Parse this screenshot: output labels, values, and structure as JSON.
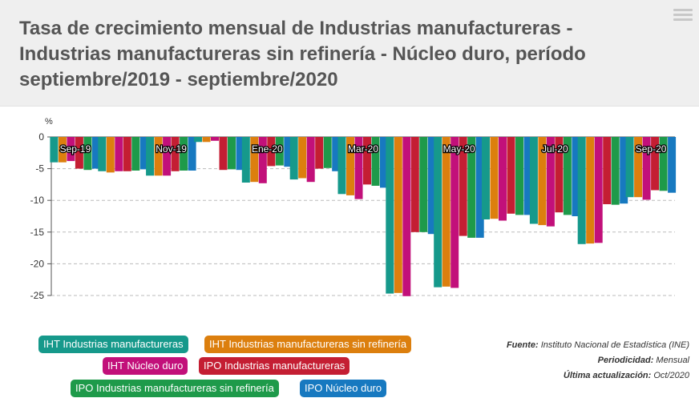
{
  "title": "Tasa de crecimiento mensual de Industrias manufactureras - Industrias manufactureras sin refinería - Núcleo duro, período septiembre/2019 - septiembre/2020",
  "menu_icon": "hamburger-menu-icon",
  "chart_data": {
    "type": "bar",
    "ylabel": "%",
    "ylim": [
      -25,
      0
    ],
    "yticks": [
      0,
      -5,
      -10,
      -15,
      -20,
      -25
    ],
    "months": [
      "Sep-19",
      "Oct-19",
      "Nov-19",
      "Dic-19",
      "Ene-20",
      "Feb-20",
      "Mar-20",
      "Abr-20",
      "May-20",
      "Jun-20",
      "Jul-20",
      "Ago-20",
      "Sep-20"
    ],
    "x_tick_labels": [
      "Sep-19",
      "Nov-19",
      "Ene-20",
      "Mar-20",
      "May-20",
      "Jul-20",
      "Sep-20"
    ],
    "series": [
      {
        "name": "IHT Industrias manufactureras",
        "color": "#16998b",
        "values": [
          -4.0,
          -5.4,
          -6.1,
          -0.8,
          -7.2,
          -6.7,
          -9.0,
          -24.7,
          -23.7,
          -13.0,
          -13.7,
          -16.9,
          -9.5
        ]
      },
      {
        "name": "IHT Industrias manufactureras sin refinería",
        "color": "#dc7f0e",
        "values": [
          -4.0,
          -5.6,
          -6.1,
          -0.8,
          -7.1,
          -6.5,
          -9.2,
          -24.6,
          -23.6,
          -12.9,
          -13.9,
          -16.8,
          -9.5
        ]
      },
      {
        "name": "IHT Núcleo duro",
        "color": "#c2107a",
        "values": [
          -3.8,
          -5.4,
          -6.1,
          -0.6,
          -7.3,
          -7.1,
          -9.8,
          -25.1,
          -23.8,
          -13.2,
          -14.1,
          -16.7,
          -9.9
        ]
      },
      {
        "name": "IPO Industrias manufactureras",
        "color": "#c41e33",
        "values": [
          -5.0,
          -5.4,
          -5.4,
          -5.2,
          -4.6,
          -5.0,
          -7.5,
          -15.0,
          -15.6,
          -12.1,
          -11.9,
          -10.6,
          -8.4
        ]
      },
      {
        "name": "IPO Industrias manufactureras sin refinería",
        "color": "#1e9a4a",
        "values": [
          -5.2,
          -5.3,
          -5.3,
          -5.1,
          -4.5,
          -4.9,
          -7.7,
          -15.0,
          -15.9,
          -12.3,
          -12.3,
          -10.7,
          -8.5
        ]
      },
      {
        "name": "IPO Núcleo duro",
        "color": "#1779c0",
        "values": [
          -5.0,
          -5.1,
          -5.3,
          -5.2,
          -4.7,
          -5.4,
          -8.0,
          -15.3,
          -15.9,
          -12.3,
          -12.5,
          -10.5,
          -8.8
        ]
      }
    ]
  },
  "meta": {
    "source_label": "Fuente:",
    "source_value": "Instituto Nacional de Estadística (INE)",
    "period_label": "Periodicidad:",
    "period_value": "Mensual",
    "updated_label": "Última actualización:",
    "updated_value": "Oct/2020"
  }
}
